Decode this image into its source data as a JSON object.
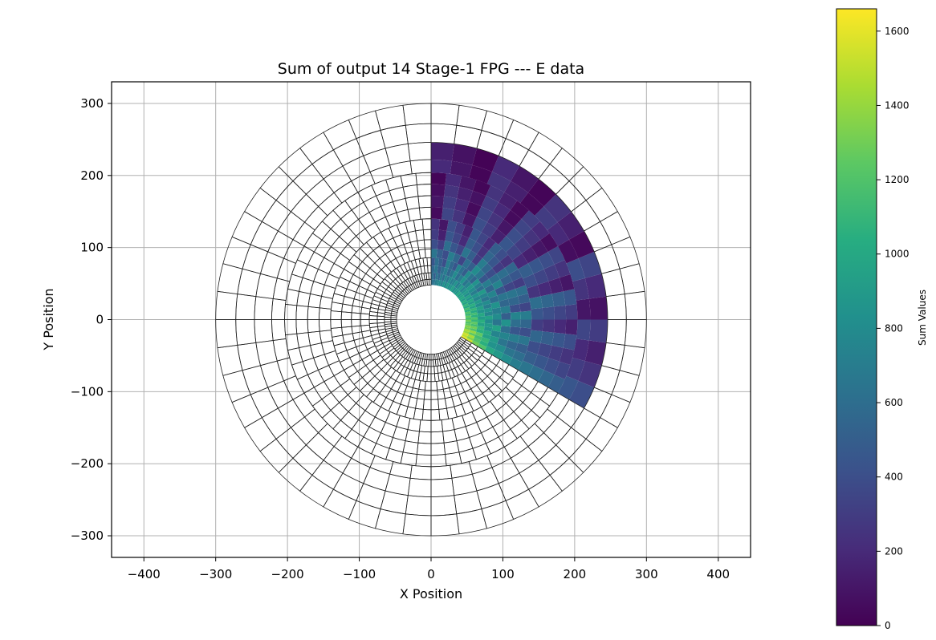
{
  "chart_data": {
    "type": "heatmap",
    "subtype": "polar-segmented-heatmap",
    "title": "Sum of output 14 Stage-1 FPG --- E data",
    "xlabel": "X Position",
    "ylabel": "Y Position",
    "xlim": [
      -445,
      445
    ],
    "ylim": [
      -330,
      330
    ],
    "xticks": [
      -400,
      -300,
      -200,
      -100,
      0,
      100,
      200,
      300,
      400
    ],
    "yticks": [
      -300,
      -200,
      -100,
      0,
      100,
      200,
      300
    ],
    "grid": true,
    "colormap": "viridis",
    "colorbar": {
      "label": "Sum Values",
      "range": [
        0,
        1660
      ],
      "ticks": [
        0,
        200,
        400,
        600,
        800,
        1000,
        1200,
        1400,
        1600
      ]
    },
    "grid_layout": {
      "rings": [
        {
          "r_in": 48,
          "r_out": 56,
          "segments": 120
        },
        {
          "r_in": 56,
          "r_out": 65,
          "segments": 120
        },
        {
          "r_in": 65,
          "r_out": 75,
          "segments": 96
        },
        {
          "r_in": 75,
          "r_out": 86,
          "segments": 96
        },
        {
          "r_in": 86,
          "r_out": 98,
          "segments": 72
        },
        {
          "r_in": 98,
          "r_out": 111,
          "segments": 72
        },
        {
          "r_in": 111,
          "r_out": 125,
          "segments": 72
        },
        {
          "r_in": 125,
          "r_out": 140,
          "segments": 72
        },
        {
          "r_in": 140,
          "r_out": 156,
          "segments": 60
        },
        {
          "r_in": 156,
          "r_out": 172,
          "segments": 60
        },
        {
          "r_in": 172,
          "r_out": 188,
          "segments": 60
        },
        {
          "r_in": 188,
          "r_out": 204,
          "segments": 60
        },
        {
          "r_in": 204,
          "r_out": 222,
          "segments": 48
        },
        {
          "r_in": 222,
          "r_out": 246,
          "segments": 48
        },
        {
          "r_in": 246,
          "r_out": 272,
          "segments": 48
        },
        {
          "r_in": 272,
          "r_out": 300,
          "segments": 48
        }
      ],
      "filled_sector_deg": [
        -30,
        90
      ],
      "filled_ring_count": 14
    },
    "cell_values_by_ring": [
      {
        "ring": 1,
        "values": [
          1600,
          1500,
          1550,
          1400,
          1450,
          1300,
          1350,
          1250,
          1200,
          1300,
          1150,
          1250,
          1100,
          1200,
          1050,
          1150,
          1000,
          1100,
          950,
          1050,
          900,
          1000,
          950,
          900,
          1000,
          850,
          900,
          800,
          950,
          850,
          800,
          900,
          750,
          850,
          700,
          800,
          750,
          700,
          650,
          600
        ]
      },
      {
        "ring": 2,
        "values": [
          1550,
          1350,
          1450,
          1250,
          1400,
          1200,
          1300,
          1150,
          1250,
          1100,
          1200,
          1050,
          1150,
          1000,
          1100,
          950,
          1050,
          900,
          1000,
          850,
          950,
          800,
          900,
          850,
          750,
          900,
          800,
          700,
          850,
          750,
          700,
          800,
          650,
          750,
          600,
          700,
          550,
          650,
          500,
          600
        ]
      },
      {
        "ring": 3,
        "values": [
          1300,
          1200,
          1150,
          1250,
          1050,
          1100,
          950,
          1050,
          900,
          1000,
          850,
          950,
          800,
          900,
          750,
          850,
          700,
          800,
          900,
          750,
          650,
          850,
          700,
          600,
          800,
          650,
          550,
          700,
          600,
          500,
          650,
          550
        ]
      },
      {
        "ring": 4,
        "values": [
          1200,
          1050,
          1100,
          950,
          1000,
          850,
          900,
          800,
          950,
          750,
          850,
          700,
          800,
          650,
          750,
          900,
          600,
          700,
          850,
          550,
          650,
          800,
          500,
          600,
          750,
          450,
          550,
          700,
          400,
          500,
          600,
          450
        ]
      },
      {
        "ring": 5,
        "values": [
          1000,
          850,
          900,
          750,
          950,
          650,
          800,
          700,
          850,
          600,
          750,
          550,
          700,
          450,
          650,
          800,
          500,
          600,
          350,
          550,
          700,
          400,
          500,
          650
        ]
      },
      {
        "ring": 6,
        "values": [
          900,
          800,
          650,
          750,
          600,
          850,
          500,
          700,
          550,
          650,
          450,
          750,
          600,
          400,
          550,
          700,
          300,
          500,
          650,
          350,
          450,
          600,
          300,
          400
        ]
      },
      {
        "ring": 7,
        "values": [
          800,
          650,
          550,
          700,
          450,
          600,
          750,
          400,
          550,
          650,
          350,
          500,
          600,
          300,
          450,
          550,
          250,
          400,
          500,
          200,
          350,
          450,
          150,
          300
        ]
      },
      {
        "ring": 8,
        "values": [
          700,
          600,
          500,
          650,
          400,
          550,
          700,
          350,
          500,
          600,
          300,
          450,
          550,
          250,
          400,
          500,
          200,
          350,
          450,
          150,
          300,
          400,
          100,
          250
        ]
      },
      {
        "ring": 9,
        "values": [
          650,
          500,
          400,
          550,
          300,
          450,
          600,
          250,
          400,
          500,
          200,
          350,
          450,
          150,
          300,
          400,
          100,
          250,
          350,
          50
        ]
      },
      {
        "ring": 10,
        "values": [
          600,
          450,
          350,
          500,
          250,
          400,
          550,
          200,
          350,
          450,
          150,
          300,
          400,
          100,
          250,
          350,
          50,
          200,
          300,
          100
        ]
      },
      {
        "ring": 11,
        "values": [
          550,
          400,
          300,
          450,
          200,
          350,
          500,
          150,
          300,
          400,
          100,
          250,
          350,
          50,
          200,
          300,
          80,
          150,
          250,
          60
        ]
      },
      {
        "ring": 12,
        "values": [
          500,
          350,
          250,
          400,
          150,
          300,
          450,
          100,
          250,
          350,
          60,
          200,
          300,
          40,
          150,
          250,
          30,
          100,
          200,
          20
        ]
      },
      {
        "ring": 13,
        "values": [
          450,
          300,
          200,
          350,
          100,
          250,
          400,
          60,
          200,
          300,
          30,
          150,
          250,
          20,
          100,
          200
        ]
      },
      {
        "ring": 14,
        "values": [
          400,
          250,
          150,
          300,
          80,
          200,
          350,
          40,
          150,
          250,
          20,
          100,
          200,
          10,
          80,
          150
        ]
      }
    ]
  }
}
